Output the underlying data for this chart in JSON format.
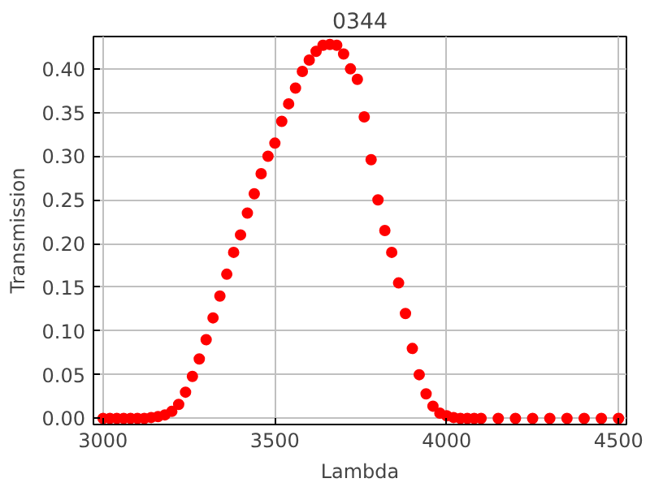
{
  "chart_data": {
    "type": "scatter",
    "title": "0344",
    "xlabel": "Lambda",
    "ylabel": "Transmission",
    "x": [
      3000,
      3020,
      3040,
      3060,
      3080,
      3100,
      3120,
      3140,
      3160,
      3180,
      3200,
      3220,
      3240,
      3260,
      3280,
      3300,
      3320,
      3340,
      3360,
      3380,
      3400,
      3420,
      3440,
      3460,
      3480,
      3500,
      3520,
      3540,
      3560,
      3580,
      3600,
      3620,
      3640,
      3660,
      3680,
      3700,
      3720,
      3740,
      3760,
      3780,
      3800,
      3820,
      3840,
      3860,
      3880,
      3900,
      3920,
      3940,
      3960,
      3980,
      4000,
      4020,
      4040,
      4060,
      4080,
      4100,
      4150,
      4200,
      4250,
      4300,
      4350,
      4400,
      4450,
      4500
    ],
    "series": [
      {
        "color": "#ff0000",
        "values": [
          0,
          0,
          0,
          0,
          0,
          0,
          0,
          0.001,
          0.002,
          0.004,
          0.008,
          0.016,
          0.03,
          0.048,
          0.068,
          0.09,
          0.115,
          0.14,
          0.165,
          0.19,
          0.21,
          0.235,
          0.257,
          0.28,
          0.3,
          0.315,
          0.34,
          0.36,
          0.378,
          0.397,
          0.41,
          0.42,
          0.427,
          0.428,
          0.427,
          0.417,
          0.4,
          0.388,
          0.345,
          0.296,
          0.25,
          0.215,
          0.19,
          0.155,
          0.12,
          0.08,
          0.05,
          0.028,
          0.014,
          0.006,
          0.003,
          0.001,
          0,
          0,
          0,
          0,
          0,
          0,
          0,
          0,
          0,
          0,
          0,
          0
        ]
      }
    ],
    "xlim": [
      2972,
      4523
    ],
    "xticks": [
      3000,
      3500,
      4000,
      4500
    ],
    "ylim": [
      -0.007,
      0.437
    ],
    "yticks": [
      {
        "value": 0,
        "label": "0.00"
      },
      {
        "value": 0.05,
        "label": "0.05"
      },
      {
        "value": 0.1,
        "label": "0.10"
      },
      {
        "value": 0.15,
        "label": "0.15"
      },
      {
        "value": 0.2,
        "label": "0.20"
      },
      {
        "value": 0.25,
        "label": "0.25"
      },
      {
        "value": 0.3,
        "label": "0.30"
      },
      {
        "value": 0.35,
        "label": "0.35"
      },
      {
        "value": 0.4,
        "label": "0.40"
      }
    ],
    "grid": true,
    "marker": "circle"
  }
}
